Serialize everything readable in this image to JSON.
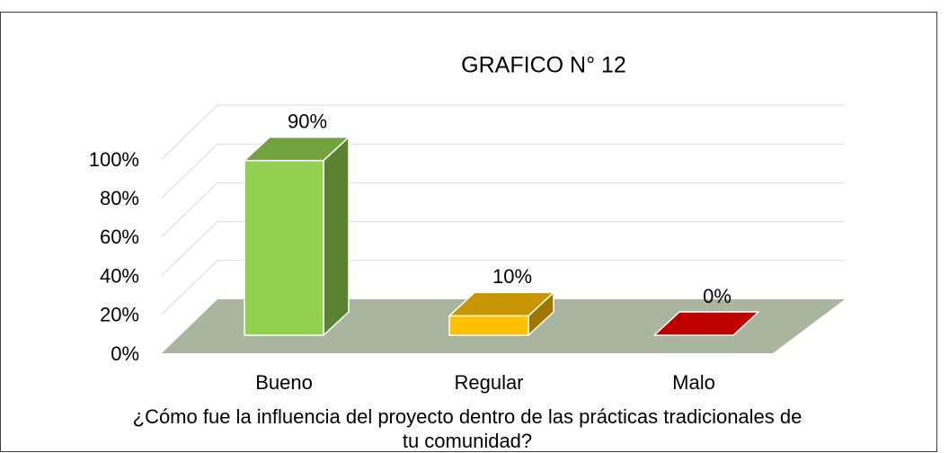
{
  "chart_data": {
    "type": "bar3d",
    "title": "GRAFICO N° 12",
    "x_label": "¿Cómo fue la influencia del proyecto dentro de las prácticas tradicionales de tu comunidad?",
    "categories": [
      "Bueno",
      "Regular",
      "Malo"
    ],
    "values": [
      90,
      10,
      0
    ],
    "value_labels": [
      "90%",
      "10%",
      "0%"
    ],
    "colors": [
      "#92d050",
      "#ffc000",
      "#c00000"
    ],
    "ylim": [
      0,
      100
    ],
    "yticks": [
      {
        "value": 0,
        "label": "0%"
      },
      {
        "value": 20,
        "label": "20%"
      },
      {
        "value": 40,
        "label": "40%"
      },
      {
        "value": 60,
        "label": "60%"
      },
      {
        "value": 80,
        "label": "80%"
      },
      {
        "value": 100,
        "label": "100%"
      }
    ],
    "grid": true
  }
}
